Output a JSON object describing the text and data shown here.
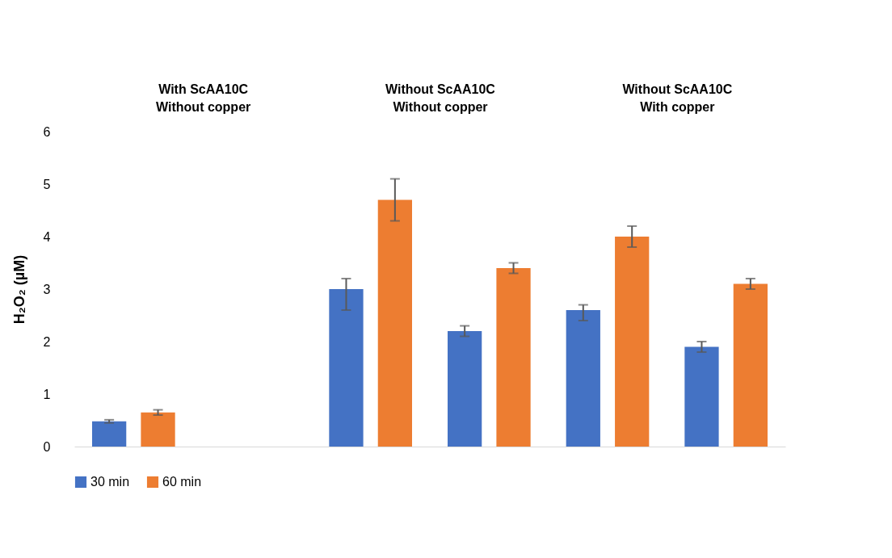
{
  "chart_data": {
    "type": "bar",
    "ylabel": "H₂O₂ (µM)",
    "categories": [
      null,
      null,
      null,
      null,
      null,
      null
    ],
    "series": [
      {
        "name": "30 min",
        "color": "#4472c4",
        "values": [
          0.48,
          0,
          3.0,
          2.2,
          2.6,
          1.9
        ],
        "errors": [
          0.03,
          null,
          [
            2.6,
            3.2
          ],
          0.1,
          [
            2.4,
            2.7
          ],
          0.1
        ]
      },
      {
        "name": "60 min",
        "color": "#ed7d31",
        "values": [
          0.65,
          0,
          4.7,
          3.4,
          4.0,
          3.1
        ],
        "errors": [
          0.05,
          null,
          0.4,
          0.1,
          0.2,
          0.1
        ]
      }
    ],
    "ylim": [
      0,
      6
    ],
    "yticks": [
      0,
      1,
      2,
      3,
      4,
      5,
      6
    ],
    "grid": false,
    "legend": "bottom",
    "annotations": [
      "With ScAA10C",
      "Without copper",
      "Without ScAA10C",
      "Without copper",
      "Without ScAA10C",
      "With copper"
    ]
  }
}
